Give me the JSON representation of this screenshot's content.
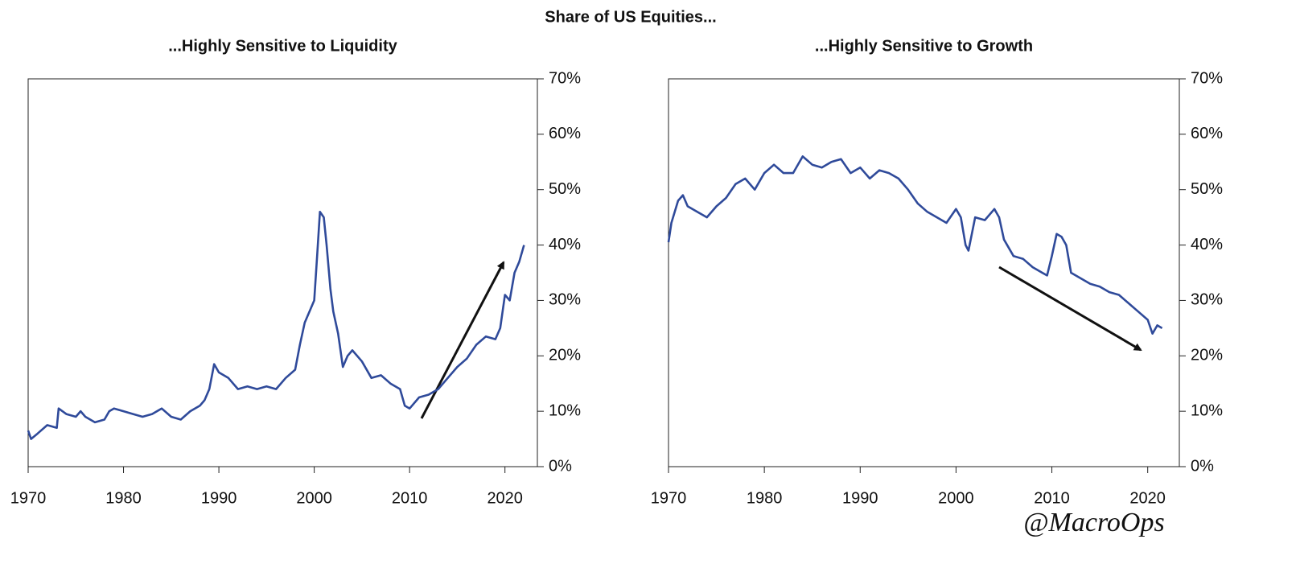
{
  "title": "Share of US Equities...",
  "annotation": "@MacroOps",
  "chart_data": [
    {
      "type": "line",
      "title": "...Highly Sensitive to Liquidity",
      "x": [
        1970,
        1970.3,
        1971,
        1972,
        1973,
        1973.2,
        1974,
        1975,
        1975.5,
        1976,
        1977,
        1978,
        1978.5,
        1979,
        1980,
        1981,
        1982,
        1983,
        1984,
        1985,
        1986,
        1987,
        1988,
        1988.5,
        1989,
        1989.5,
        1990,
        1991,
        1992,
        1993,
        1994,
        1995,
        1996,
        1997,
        1998,
        1998.5,
        1999,
        1999.5,
        2000,
        2000.3,
        2000.6,
        2001,
        2001.3,
        2001.7,
        2002,
        2002.5,
        2003,
        2003.5,
        2004,
        2005,
        2006,
        2007,
        2008,
        2009,
        2009.5,
        2010,
        2011,
        2012,
        2013,
        2014,
        2015,
        2016,
        2017,
        2018,
        2019,
        2019.5,
        2020,
        2020.5,
        2021,
        2021.5,
        2022
      ],
      "series": [
        {
          "name": "Share of US Equities highly sensitive to liquidity",
          "color": "#2f4a9a",
          "values": [
            6.5,
            5,
            6,
            7.5,
            7,
            10.5,
            9.5,
            9,
            10,
            9,
            8,
            8.5,
            10,
            10.5,
            10,
            9.5,
            9,
            9.5,
            10.5,
            9,
            8.5,
            10,
            11,
            12,
            14,
            18.5,
            17,
            16,
            14,
            14.5,
            14,
            14.5,
            14,
            16,
            17.5,
            22,
            26,
            28,
            30,
            38,
            46,
            45,
            40,
            32,
            28,
            24,
            18,
            20,
            21,
            19,
            16,
            16.5,
            15,
            14,
            11,
            10.5,
            12.5,
            13,
            14,
            16,
            18,
            19.5,
            22,
            23.5,
            23,
            25,
            31,
            30,
            35,
            37,
            40
          ]
        }
      ],
      "xlim": [
        1970,
        2023.4
      ],
      "xticks": [
        1970,
        1980,
        1990,
        2000,
        2010,
        2020
      ],
      "ylim": [
        0,
        70
      ],
      "yticks": [
        {
          "value": 0,
          "label": "0%"
        },
        {
          "value": 10,
          "label": "10%"
        },
        {
          "value": 20,
          "label": "20%"
        },
        {
          "value": 30,
          "label": "30%"
        },
        {
          "value": 40,
          "label": "40%"
        },
        {
          "value": 50,
          "label": "50%"
        },
        {
          "value": 60,
          "label": "60%"
        },
        {
          "value": 70,
          "label": "70%"
        }
      ]
    },
    {
      "type": "line",
      "title": "...Highly Sensitive to Growth",
      "x": [
        1970,
        1970.3,
        1971,
        1971.5,
        1972,
        1973,
        1974,
        1975,
        1976,
        1977,
        1978,
        1979,
        1980,
        1981,
        1982,
        1983,
        1984,
        1985,
        1986,
        1987,
        1988,
        1989,
        1990,
        1991,
        1992,
        1993,
        1994,
        1995,
        1996,
        1997,
        1998,
        1999,
        2000,
        2000.5,
        2001,
        2001.3,
        2002,
        2003,
        2004,
        2004.5,
        2005,
        2006,
        2007,
        2008,
        2009,
        2009.5,
        2010,
        2010.5,
        2011,
        2011.5,
        2012,
        2013,
        2014,
        2015,
        2016,
        2017,
        2018,
        2019,
        2020,
        2020.5,
        2021,
        2021.5
      ],
      "series": [
        {
          "name": "Share of US Equities highly sensitive to growth",
          "color": "#2f4a9a",
          "values": [
            40.5,
            44,
            48,
            49,
            47,
            46,
            45,
            47,
            48.5,
            51,
            52,
            50,
            53,
            54.5,
            53,
            53,
            56,
            54.5,
            54,
            55,
            55.5,
            53,
            54,
            52,
            53.5,
            53,
            52,
            50,
            47.5,
            46,
            45,
            44,
            46.5,
            45,
            40,
            39,
            45,
            44.5,
            46.5,
            45,
            41,
            38,
            37.5,
            36,
            35,
            34.5,
            38,
            42,
            41.5,
            40,
            35,
            34,
            33,
            32.5,
            31.5,
            31,
            29.5,
            28,
            26.5,
            24,
            25.5,
            25
          ]
        }
      ],
      "xlim": [
        1970,
        2023.3
      ],
      "xticks": [
        1970,
        1980,
        1990,
        2000,
        2010,
        2020
      ],
      "ylim": [
        0,
        70
      ],
      "yticks": [
        {
          "value": 0,
          "label": "0%"
        },
        {
          "value": 10,
          "label": "10%"
        },
        {
          "value": 20,
          "label": "20%"
        },
        {
          "value": 30,
          "label": "30%"
        },
        {
          "value": 40,
          "label": "40%"
        },
        {
          "value": 50,
          "label": "50%"
        },
        {
          "value": 60,
          "label": "60%"
        },
        {
          "value": 70,
          "label": "70%"
        }
      ]
    }
  ]
}
